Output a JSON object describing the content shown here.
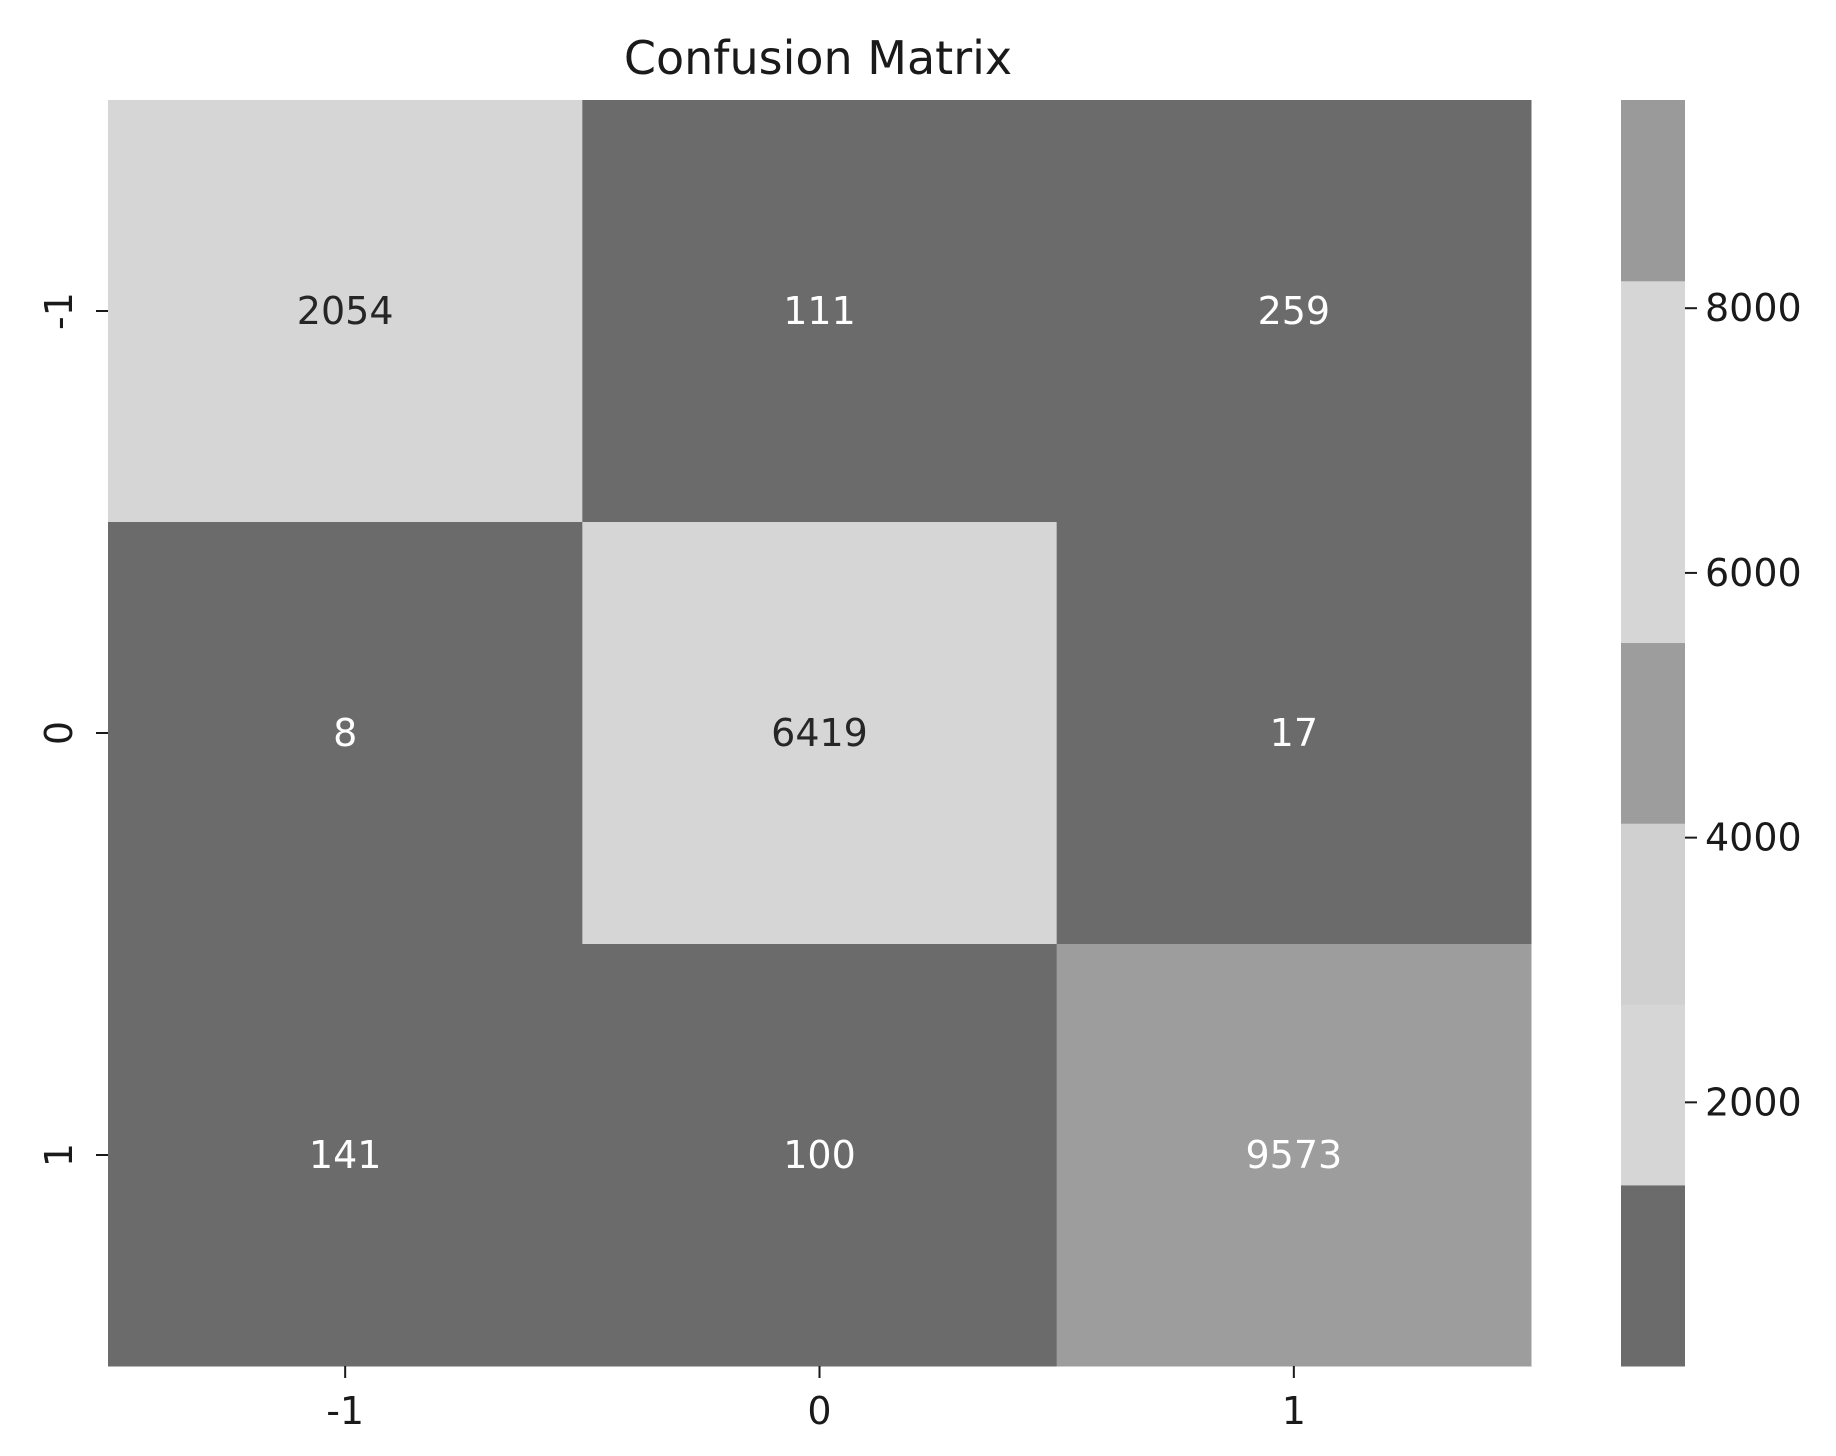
{
  "chart_data": {
    "type": "heatmap",
    "title": "Confusion Matrix",
    "xlabel": "",
    "ylabel": "",
    "x_categories": [
      "-1",
      "0",
      "1"
    ],
    "y_categories": [
      "-1",
      "0",
      "1"
    ],
    "values": [
      [
        2054,
        111,
        259
      ],
      [
        8,
        6419,
        17
      ],
      [
        141,
        100,
        9573
      ]
    ],
    "colorbar": {
      "range": [
        8,
        9573
      ],
      "ticks": [
        2000,
        4000,
        6000,
        8000
      ],
      "tick_labels": [
        "2000",
        "4000",
        "6000",
        "8000"
      ],
      "bands": [
        {
          "from": 8,
          "to": 1376,
          "color": "#6b6b6b"
        },
        {
          "from": 1376,
          "to": 2742,
          "color": "#d6d6d6"
        },
        {
          "from": 2742,
          "to": 4109,
          "color": "#d0d0d0"
        },
        {
          "from": 4109,
          "to": 5474,
          "color": "#9d9d9d"
        },
        {
          "from": 5474,
          "to": 8207,
          "color": "#d6d6d6"
        },
        {
          "from": 8207,
          "to": 9573,
          "color": "#9a9a9a"
        }
      ]
    },
    "cell_colors": [
      [
        "#d6d6d6",
        "#6b6b6b",
        "#6b6b6b"
      ],
      [
        "#6b6b6b",
        "#d6d6d6",
        "#6b6b6b"
      ],
      [
        "#6b6b6b",
        "#6b6b6b",
        "#9d9d9d"
      ]
    ],
    "cell_text_colors": [
      [
        "#262626",
        "#ffffff",
        "#ffffff"
      ],
      [
        "#ffffff",
        "#262626",
        "#ffffff"
      ],
      [
        "#ffffff",
        "#ffffff",
        "#ffffff"
      ]
    ]
  }
}
